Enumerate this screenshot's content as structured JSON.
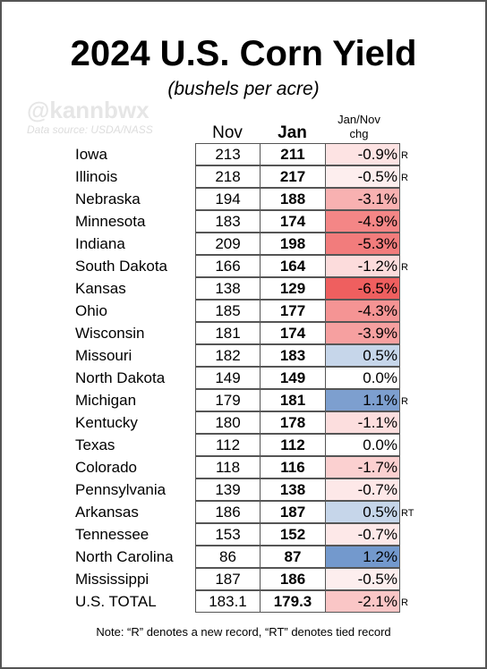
{
  "title": "2024 U.S. Corn Yield",
  "subtitle": "(bushels per acre)",
  "watermark": "@kannbwx",
  "source": "Data source: USDA/NASS",
  "table": {
    "headers": [
      "Nov",
      "Jan",
      "Jan/Nov chg"
    ],
    "rows": [
      {
        "state": "Iowa",
        "nov": "213",
        "jan": "211",
        "chg": "-0.9%",
        "color": "#fde3e3",
        "marker": "R"
      },
      {
        "state": "Illinois",
        "nov": "218",
        "jan": "217",
        "chg": "-0.5%",
        "color": "#fdeeee",
        "marker": "R"
      },
      {
        "state": "Nebraska",
        "nov": "194",
        "jan": "188",
        "chg": "-3.1%",
        "color": "#f8b1b1"
      },
      {
        "state": "Minnesota",
        "nov": "183",
        "jan": "174",
        "chg": "-4.9%",
        "color": "#f48686"
      },
      {
        "state": "Indiana",
        "nov": "209",
        "jan": "198",
        "chg": "-5.3%",
        "color": "#f27c7c"
      },
      {
        "state": "South Dakota",
        "nov": "166",
        "jan": "164",
        "chg": "-1.2%",
        "color": "#fcdcdc",
        "marker": "R"
      },
      {
        "state": "Kansas",
        "nov": "138",
        "jan": "129",
        "chg": "-6.5%",
        "color": "#ef5f5f"
      },
      {
        "state": "Ohio",
        "nov": "185",
        "jan": "177",
        "chg": "-4.3%",
        "color": "#f59494"
      },
      {
        "state": "Wisconsin",
        "nov": "181",
        "jan": "174",
        "chg": "-3.9%",
        "color": "#f6a0a0"
      },
      {
        "state": "Missouri",
        "nov": "182",
        "jan": "183",
        "chg": "0.5%",
        "color": "#c6d6ea"
      },
      {
        "state": "North Dakota",
        "nov": "149",
        "jan": "149",
        "chg": "0.0%",
        "color": "#ffffff"
      },
      {
        "state": "Michigan",
        "nov": "179",
        "jan": "181",
        "chg": "1.1%",
        "color": "#7d9fcf",
        "marker": "R"
      },
      {
        "state": "Kentucky",
        "nov": "180",
        "jan": "178",
        "chg": "-1.1%",
        "color": "#fcdede"
      },
      {
        "state": "Texas",
        "nov": "112",
        "jan": "112",
        "chg": "0.0%",
        "color": "#ffffff"
      },
      {
        "state": "Colorado",
        "nov": "118",
        "jan": "116",
        "chg": "-1.7%",
        "color": "#fbd0d0"
      },
      {
        "state": "Pennsylvania",
        "nov": "139",
        "jan": "138",
        "chg": "-0.7%",
        "color": "#fde8e8"
      },
      {
        "state": "Arkansas",
        "nov": "186",
        "jan": "187",
        "chg": "0.5%",
        "color": "#c6d6ea",
        "marker": "RT"
      },
      {
        "state": "Tennessee",
        "nov": "153",
        "jan": "152",
        "chg": "-0.7%",
        "color": "#fde8e8"
      },
      {
        "state": "North Carolina",
        "nov": "86",
        "jan": "87",
        "chg": "1.2%",
        "color": "#7399cd"
      },
      {
        "state": "Mississippi",
        "nov": "187",
        "jan": "186",
        "chg": "-0.5%",
        "color": "#fdeeee"
      },
      {
        "state": "U.S. TOTAL",
        "nov": "183.1",
        "jan": "179.3",
        "chg": "-2.1%",
        "color": "#fac6c6",
        "marker": "R"
      }
    ]
  },
  "note": "Note: “R” denotes a new record, “RT” denotes tied record"
}
